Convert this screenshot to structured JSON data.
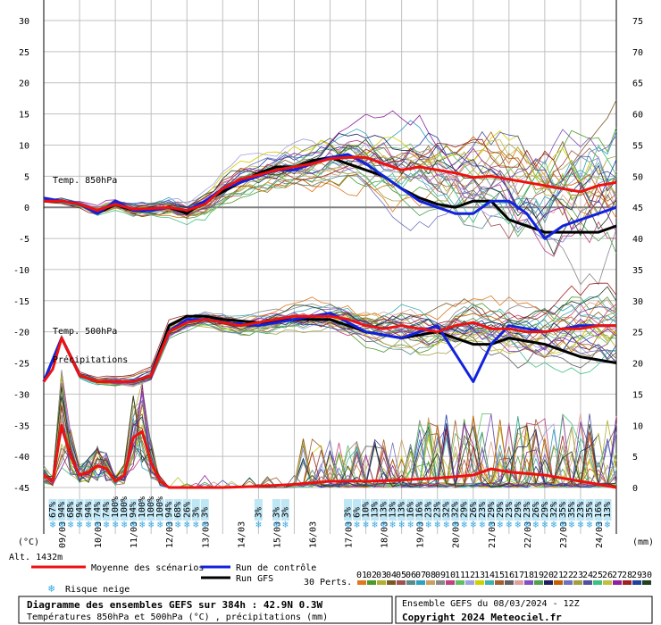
{
  "chart_data": {
    "type": "line",
    "title": "Diagramme des ensembles GEFS sur 384h : 42.9N 0.3W",
    "subtitle": "Températures 850hPa et 500hPa (°C) , précipitations (mm)",
    "run_info": "Ensemble GEFS du 08/03/2024 - 12Z",
    "copyright": "Copyright 2024 Meteociel.fr",
    "altitude": "Alt. 1432m",
    "left_axis": {
      "unit": "(°C)",
      "min": -45,
      "max": 30,
      "step": 5,
      "ticks": [
        "30",
        "25",
        "20",
        "15",
        "10",
        "5",
        "0",
        "-5",
        "-10",
        "-15",
        "-20",
        "-25",
        "-30",
        "-35",
        "-40",
        "-45"
      ]
    },
    "right_axis": {
      "unit": "(mm)",
      "min": 0,
      "max": 75,
      "step": 5,
      "ticks": [
        "75",
        "70",
        "65",
        "60",
        "55",
        "50",
        "45",
        "40",
        "35",
        "30",
        "25",
        "20",
        "15",
        "10",
        "5",
        "0"
      ]
    },
    "x_ticks": [
      "09/03",
      "10/03",
      "11/03",
      "12/03",
      "13/03",
      "14/03",
      "15/03",
      "16/03",
      "17/03",
      "18/03",
      "19/03",
      "20/03",
      "21/03",
      "22/03",
      "23/03",
      "24/03"
    ],
    "x_range_hours": [
      0,
      384
    ],
    "panel_labels": {
      "t850": "Temp. 850hPa",
      "t500": "Temp. 500hPa",
      "precip": "Précipitations"
    },
    "series": [
      {
        "name": "Moyenne des scénarios",
        "color": "#ee1111",
        "t850_times": [
          0,
          12,
          24,
          36,
          48,
          60,
          72,
          84,
          96,
          108,
          120,
          132,
          144,
          156,
          168,
          180,
          192,
          204,
          216,
          228,
          240,
          252,
          264,
          276,
          288,
          300,
          312,
          324,
          336,
          348,
          360,
          372,
          384
        ],
        "t850": [
          1,
          1,
          0.5,
          -0.5,
          0.5,
          -0.3,
          -0.2,
          0,
          -0.5,
          0.5,
          3,
          4.5,
          5.2,
          6,
          6.5,
          7,
          7.8,
          8,
          8,
          7,
          6,
          6.5,
          6,
          5.5,
          4.8,
          5,
          4.5,
          4,
          3.5,
          3,
          2.5,
          3.5,
          4
        ],
        "t500_times": [
          0,
          6,
          12,
          24,
          36,
          48,
          60,
          72,
          84,
          96,
          108,
          120,
          132,
          144,
          156,
          168,
          180,
          192,
          204,
          216,
          228,
          240,
          252,
          264,
          276,
          288,
          300,
          312,
          324,
          336,
          348,
          360,
          372,
          384
        ],
        "t500": [
          -28,
          -26,
          -21,
          -27,
          -28,
          -28,
          -28,
          -27,
          -20,
          -18.5,
          -18,
          -18.5,
          -19,
          -18.5,
          -18,
          -17.5,
          -17.5,
          -17.5,
          -18,
          -19,
          -19.5,
          -19,
          -19.5,
          -20,
          -19,
          -18.5,
          -19.5,
          -19.5,
          -20,
          -20,
          -19.5,
          -19.5,
          -19,
          -19
        ],
        "precip_times": [
          0,
          6,
          12,
          18,
          24,
          30,
          36,
          42,
          48,
          54,
          60,
          66,
          72,
          78,
          84,
          96,
          120,
          144,
          168,
          192,
          216,
          240,
          264,
          288,
          300,
          312,
          336,
          360,
          384
        ],
        "precip": [
          2,
          1,
          10,
          5,
          2,
          2.5,
          3.5,
          3,
          1,
          2,
          8,
          9,
          4,
          1,
          0,
          0,
          0,
          0.2,
          0.5,
          1,
          1,
          1.2,
          1.5,
          2,
          3,
          2.5,
          2,
          1,
          0
        ]
      },
      {
        "name": "Run de contrôle",
        "color": "#1122dd",
        "t850_times": [
          0,
          12,
          24,
          36,
          48,
          60,
          72,
          84,
          96,
          108,
          120,
          132,
          144,
          156,
          168,
          180,
          192,
          204,
          216,
          228,
          240,
          252,
          264,
          276,
          288,
          300,
          312,
          324,
          336,
          348,
          360,
          372,
          384
        ],
        "t850": [
          1.5,
          1,
          0.5,
          -1,
          1,
          -0.5,
          -0.5,
          0,
          -0.5,
          1,
          3,
          4,
          5,
          6,
          6,
          7,
          8,
          8.5,
          7,
          5,
          3,
          1,
          0,
          -1,
          -1,
          1,
          1,
          -1,
          -5,
          -3,
          -2,
          -1,
          0
        ],
        "t500_times": [
          0,
          12,
          24,
          36,
          48,
          60,
          72,
          84,
          96,
          108,
          120,
          144,
          168,
          192,
          216,
          240,
          264,
          288,
          300,
          312,
          336,
          360,
          384
        ],
        "t500": [
          -28,
          -21,
          -27,
          -28,
          -28,
          -28,
          -27,
          -20,
          -18,
          -18,
          -18.5,
          -19,
          -18,
          -17,
          -20,
          -21,
          -19,
          -28,
          -22,
          -19,
          -20,
          -19,
          -19
        ]
      },
      {
        "name": "Run GFS",
        "color": "#000000",
        "t850_times": [
          0,
          12,
          24,
          36,
          48,
          60,
          72,
          84,
          96,
          108,
          120,
          132,
          144,
          156,
          168,
          180,
          192,
          204,
          216,
          228,
          240,
          252,
          264,
          276,
          288,
          300,
          312,
          324,
          336,
          348,
          360,
          372,
          384
        ],
        "t850": [
          1,
          1,
          0.5,
          -1,
          0.5,
          -0.5,
          -0.5,
          0,
          -1,
          1,
          2.5,
          4,
          5.5,
          6.5,
          6.5,
          7.5,
          8,
          7,
          6,
          5,
          3,
          1.5,
          0.5,
          0,
          1,
          1,
          -2,
          -3,
          -4,
          -4,
          -4,
          -4,
          -3
        ],
        "t500_times": [
          0,
          12,
          24,
          36,
          48,
          60,
          72,
          84,
          96,
          108,
          120,
          144,
          168,
          192,
          216,
          240,
          264,
          288,
          300,
          312,
          336,
          360,
          384
        ],
        "t500": [
          -28,
          -21,
          -27,
          -28,
          -28,
          -28,
          -27,
          -19,
          -17.5,
          -17.5,
          -18,
          -18.5,
          -18,
          -18,
          -20,
          -21,
          -20,
          -22,
          -22,
          -21,
          -22,
          -24,
          -25
        ]
      }
    ],
    "ensemble_members": 30,
    "snow_risk_label": "Risque neige",
    "snow_risk_times": [
      6,
      12,
      18,
      24,
      30,
      36,
      42,
      48,
      54,
      60,
      66,
      72,
      78,
      84,
      90,
      96,
      102,
      108,
      144,
      156,
      162,
      204,
      210,
      216,
      222,
      228,
      234,
      240,
      246,
      252,
      258,
      264,
      270,
      276,
      282,
      288,
      294,
      300,
      306,
      312,
      318,
      324,
      330,
      336,
      342,
      348,
      354,
      360,
      366,
      372,
      378
    ],
    "snow_risk_values": [
      "67%",
      "94%",
      "68%",
      "94%",
      "94%",
      "74%",
      "74%",
      "100%",
      "100%",
      "94%",
      "100%",
      "100%",
      "100%",
      "94%",
      "68%",
      "26%",
      "3%",
      "3%",
      "3%",
      "3%",
      "3%",
      "3%",
      "6%",
      "10%",
      "13%",
      "13%",
      "13%",
      "13%",
      "16%",
      "16%",
      "23%",
      "23%",
      "32%",
      "32%",
      "29%",
      "26%",
      "23%",
      "29%",
      "29%",
      "23%",
      "29%",
      "23%",
      "26%",
      "29%",
      "32%",
      "35%",
      "35%",
      "23%",
      "35%",
      "16%",
      "13%"
    ],
    "legend": {
      "mean": "Moyenne des scénarios",
      "control": "Run de contrôle",
      "gfs": "Run GFS",
      "snow": "Risque neige",
      "perts": "30 Perts.",
      "perts_numbers": [
        "01",
        "02",
        "03",
        "04",
        "05",
        "06",
        "07",
        "08",
        "09",
        "10",
        "11",
        "12",
        "13",
        "14",
        "15",
        "16",
        "17",
        "18",
        "19",
        "20",
        "21",
        "22",
        "23",
        "24",
        "25",
        "26",
        "27",
        "28",
        "29",
        "30"
      ],
      "perts_colors": [
        "#e07820",
        "#4c9a2a",
        "#b0b030",
        "#7a5a20",
        "#a05050",
        "#5a8a8a",
        "#30a0c0",
        "#c8a060",
        "#888888",
        "#c04080",
        "#60c060",
        "#a0a0e0",
        "#d0d000",
        "#40b0b0",
        "#a06030",
        "#606060",
        "#e0a0a0",
        "#8050c0",
        "#50a050",
        "#202060",
        "#c06000",
        "#7070c0",
        "#a0a040",
        "#5050a0",
        "#40c080",
        "#c0c040",
        "#9020a0",
        "#a02020",
        "#2040a0",
        "#204020"
      ]
    }
  }
}
